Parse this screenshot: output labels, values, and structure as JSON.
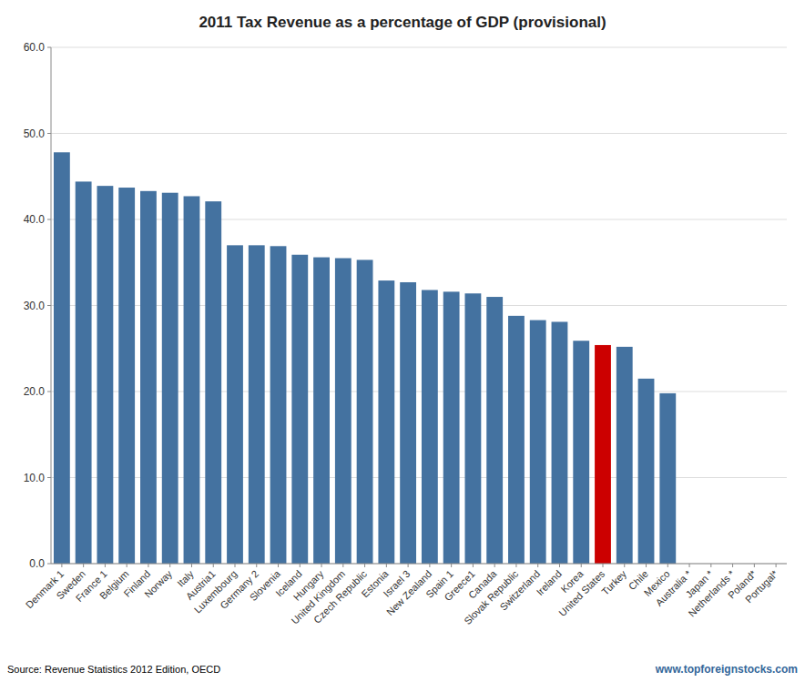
{
  "chart_data": {
    "type": "bar",
    "title": "2011 Tax Revenue as a percentage of GDP (provisional)",
    "categories": [
      "Denmark 1",
      "Sweden",
      "France 1",
      "Belgium",
      "Finland",
      "Norway",
      "Italy",
      "Austria1",
      "Luxembourg",
      "Germany 2",
      "Slovenia",
      "Iceland",
      "Hungary",
      "United Kingdom",
      "Czech Republic",
      "Estonia",
      "Israel 3",
      "New Zealand",
      "Spain 1",
      "Greece1",
      "Canada",
      "Slovak Republic",
      "Switzerland",
      "Ireland",
      "Korea",
      "United States",
      "Turkey",
      "Chile",
      "Mexico",
      "Australia *",
      "Japan *",
      "Netherlands *",
      "Poland*",
      "Portugal*"
    ],
    "values": [
      47.8,
      44.4,
      43.9,
      43.7,
      43.3,
      43.1,
      42.7,
      42.1,
      37.0,
      37.0,
      36.9,
      35.9,
      35.6,
      35.5,
      35.3,
      32.9,
      32.7,
      31.8,
      31.6,
      31.4,
      31.0,
      28.8,
      28.3,
      28.1,
      25.9,
      25.4,
      25.2,
      21.5,
      19.8,
      0.0,
      0.0,
      0.0,
      0.0,
      0.0
    ],
    "colors": [
      "#4472a0",
      "#4472a0",
      "#4472a0",
      "#4472a0",
      "#4472a0",
      "#4472a0",
      "#4472a0",
      "#4472a0",
      "#4472a0",
      "#4472a0",
      "#4472a0",
      "#4472a0",
      "#4472a0",
      "#4472a0",
      "#4472a0",
      "#4472a0",
      "#4472a0",
      "#4472a0",
      "#4472a0",
      "#4472a0",
      "#4472a0",
      "#4472a0",
      "#4472a0",
      "#4472a0",
      "#4472a0",
      "#cc0000",
      "#4472a0",
      "#4472a0",
      "#4472a0",
      "#4472a0",
      "#4472a0",
      "#4472a0",
      "#4472a0",
      "#4472a0"
    ],
    "ylim": [
      0,
      60
    ],
    "yticks": [
      {
        "value": 0.0,
        "label": "0.0"
      },
      {
        "value": 10.0,
        "label": "10.0"
      },
      {
        "value": 20.0,
        "label": "20.0"
      },
      {
        "value": 30.0,
        "label": "30.0"
      },
      {
        "value": 40.0,
        "label": "40.0"
      },
      {
        "value": 50.0,
        "label": "50.0"
      },
      {
        "value": 60.0,
        "label": "60.0"
      }
    ],
    "grid": true,
    "annotations": [
      "Source: Revenue Statistics 2012 Edition, OECD",
      "www.topforeignstocks.com"
    ]
  }
}
